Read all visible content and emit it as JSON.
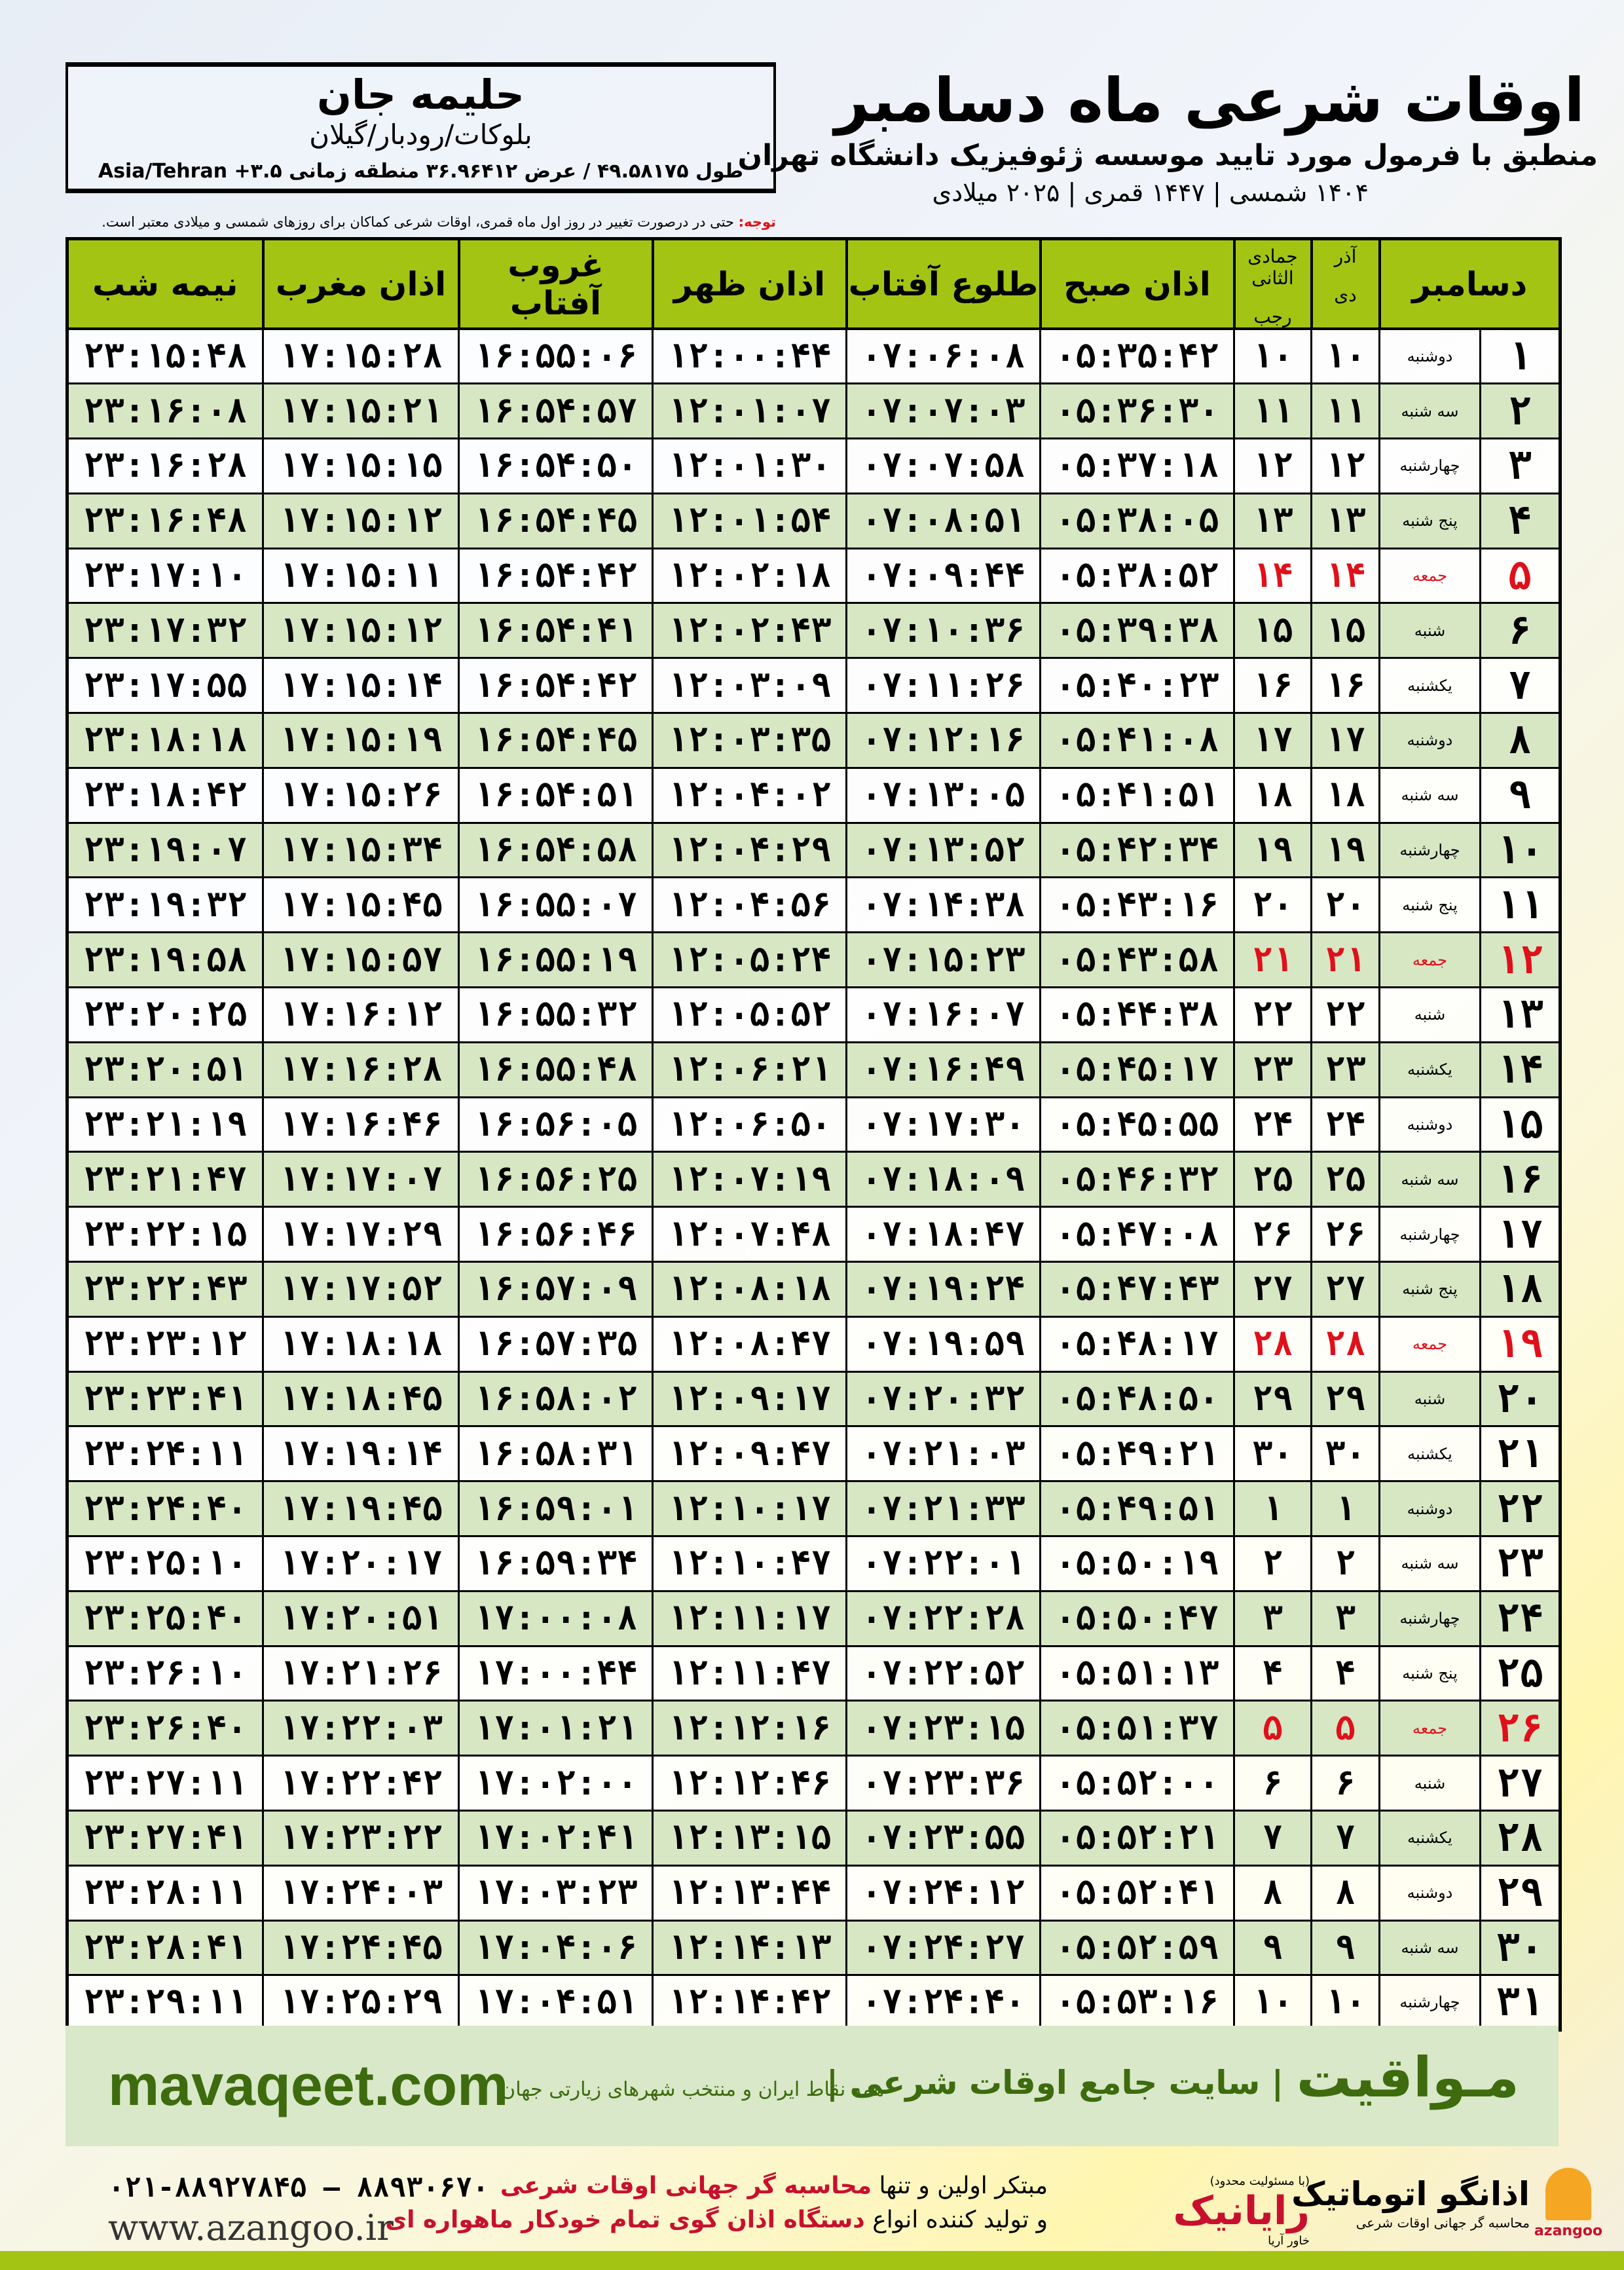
{
  "header": {
    "title": "اوقات شرعی ماه دسامبر",
    "subtitle": "منطبق با فرمول مورد تایید موسسه ژئوفیزیک دانشگاه تهران",
    "years": "۱۴۰۴ شمسی | ۱۴۴۷ قمری | ۲۰۲۵ میلادی"
  },
  "location": {
    "name": "حلیمه جان",
    "region": "بلوکات/رودبار/گیلان",
    "coords": "طول ۴۹.۵۸۱۷۵ / عرض ۳۶.۹۶۴۱۲ منطقه زمانی ۳.۵+ Asia/Tehran"
  },
  "note": {
    "label": "توجه:",
    "text": " حتی در درصورت تغییر در روز اول ماه قمری، اوقات شرعی کماکان برای روزهای شمسی و میلادی معتبر است."
  },
  "table": {
    "headers": {
      "month": "دسامبر",
      "shamsi_top": "آذر",
      "shamsi_bottom": "دی",
      "hijri_top": "جمادی الثانی",
      "hijri_bottom": "رجب",
      "fajr": "اذان صبح",
      "sunrise": "طلوع آفتاب",
      "dhuhr": "اذان ظهر",
      "sunset": "غروب آفتاب",
      "maghrib": "اذان مغرب",
      "midnight": "نیمه شب"
    },
    "friday_color": "#e0101a",
    "header_color": "#a4c414",
    "alt_row_color": "#d7e7c4",
    "rows": [
      [
        "۱",
        "دوشنبه",
        "۱۰",
        "۱۰",
        "۰۵:۳۵:۴۲",
        "۰۷:۰۶:۰۸",
        "۱۲:۰۰:۴۴",
        "۱۶:۵۵:۰۶",
        "۱۷:۱۵:۲۸",
        "۲۳:۱۵:۴۸"
      ],
      [
        "۲",
        "سه شنبه",
        "۱۱",
        "۱۱",
        "۰۵:۳۶:۳۰",
        "۰۷:۰۷:۰۳",
        "۱۲:۰۱:۰۷",
        "۱۶:۵۴:۵۷",
        "۱۷:۱۵:۲۱",
        "۲۳:۱۶:۰۸"
      ],
      [
        "۳",
        "چهارشنبه",
        "۱۲",
        "۱۲",
        "۰۵:۳۷:۱۸",
        "۰۷:۰۷:۵۸",
        "۱۲:۰۱:۳۰",
        "۱۶:۵۴:۵۰",
        "۱۷:۱۵:۱۵",
        "۲۳:۱۶:۲۸"
      ],
      [
        "۴",
        "پنج شنبه",
        "۱۳",
        "۱۳",
        "۰۵:۳۸:۰۵",
        "۰۷:۰۸:۵۱",
        "۱۲:۰۱:۵۴",
        "۱۶:۵۴:۴۵",
        "۱۷:۱۵:۱۲",
        "۲۳:۱۶:۴۸"
      ],
      [
        "۵",
        "جمعه",
        "۱۴",
        "۱۴",
        "۰۵:۳۸:۵۲",
        "۰۷:۰۹:۴۴",
        "۱۲:۰۲:۱۸",
        "۱۶:۵۴:۴۲",
        "۱۷:۱۵:۱۱",
        "۲۳:۱۷:۱۰"
      ],
      [
        "۶",
        "شنبه",
        "۱۵",
        "۱۵",
        "۰۵:۳۹:۳۸",
        "۰۷:۱۰:۳۶",
        "۱۲:۰۲:۴۳",
        "۱۶:۵۴:۴۱",
        "۱۷:۱۵:۱۲",
        "۲۳:۱۷:۳۲"
      ],
      [
        "۷",
        "یکشنبه",
        "۱۶",
        "۱۶",
        "۰۵:۴۰:۲۳",
        "۰۷:۱۱:۲۶",
        "۱۲:۰۳:۰۹",
        "۱۶:۵۴:۴۲",
        "۱۷:۱۵:۱۴",
        "۲۳:۱۷:۵۵"
      ],
      [
        "۸",
        "دوشنبه",
        "۱۷",
        "۱۷",
        "۰۵:۴۱:۰۸",
        "۰۷:۱۲:۱۶",
        "۱۲:۰۳:۳۵",
        "۱۶:۵۴:۴۵",
        "۱۷:۱۵:۱۹",
        "۲۳:۱۸:۱۸"
      ],
      [
        "۹",
        "سه شنبه",
        "۱۸",
        "۱۸",
        "۰۵:۴۱:۵۱",
        "۰۷:۱۳:۰۵",
        "۱۲:۰۴:۰۲",
        "۱۶:۵۴:۵۱",
        "۱۷:۱۵:۲۶",
        "۲۳:۱۸:۴۲"
      ],
      [
        "۱۰",
        "چهارشنبه",
        "۱۹",
        "۱۹",
        "۰۵:۴۲:۳۴",
        "۰۷:۱۳:۵۲",
        "۱۲:۰۴:۲۹",
        "۱۶:۵۴:۵۸",
        "۱۷:۱۵:۳۴",
        "۲۳:۱۹:۰۷"
      ],
      [
        "۱۱",
        "پنج شنبه",
        "۲۰",
        "۲۰",
        "۰۵:۴۳:۱۶",
        "۰۷:۱۴:۳۸",
        "۱۲:۰۴:۵۶",
        "۱۶:۵۵:۰۷",
        "۱۷:۱۵:۴۵",
        "۲۳:۱۹:۳۲"
      ],
      [
        "۱۲",
        "جمعه",
        "۲۱",
        "۲۱",
        "۰۵:۴۳:۵۸",
        "۰۷:۱۵:۲۳",
        "۱۲:۰۵:۲۴",
        "۱۶:۵۵:۱۹",
        "۱۷:۱۵:۵۷",
        "۲۳:۱۹:۵۸"
      ],
      [
        "۱۳",
        "شنبه",
        "۲۲",
        "۲۲",
        "۰۵:۴۴:۳۸",
        "۰۷:۱۶:۰۷",
        "۱۲:۰۵:۵۲",
        "۱۶:۵۵:۳۲",
        "۱۷:۱۶:۱۲",
        "۲۳:۲۰:۲۵"
      ],
      [
        "۱۴",
        "یکشنبه",
        "۲۳",
        "۲۳",
        "۰۵:۴۵:۱۷",
        "۰۷:۱۶:۴۹",
        "۱۲:۰۶:۲۱",
        "۱۶:۵۵:۴۸",
        "۱۷:۱۶:۲۸",
        "۲۳:۲۰:۵۱"
      ],
      [
        "۱۵",
        "دوشنبه",
        "۲۴",
        "۲۴",
        "۰۵:۴۵:۵۵",
        "۰۷:۱۷:۳۰",
        "۱۲:۰۶:۵۰",
        "۱۶:۵۶:۰۵",
        "۱۷:۱۶:۴۶",
        "۲۳:۲۱:۱۹"
      ],
      [
        "۱۶",
        "سه شنبه",
        "۲۵",
        "۲۵",
        "۰۵:۴۶:۳۲",
        "۰۷:۱۸:۰۹",
        "۱۲:۰۷:۱۹",
        "۱۶:۵۶:۲۵",
        "۱۷:۱۷:۰۷",
        "۲۳:۲۱:۴۷"
      ],
      [
        "۱۷",
        "چهارشنبه",
        "۲۶",
        "۲۶",
        "۰۵:۴۷:۰۸",
        "۰۷:۱۸:۴۷",
        "۱۲:۰۷:۴۸",
        "۱۶:۵۶:۴۶",
        "۱۷:۱۷:۲۹",
        "۲۳:۲۲:۱۵"
      ],
      [
        "۱۸",
        "پنج شنبه",
        "۲۷",
        "۲۷",
        "۰۵:۴۷:۴۳",
        "۰۷:۱۹:۲۴",
        "۱۲:۰۸:۱۸",
        "۱۶:۵۷:۰۹",
        "۱۷:۱۷:۵۲",
        "۲۳:۲۲:۴۳"
      ],
      [
        "۱۹",
        "جمعه",
        "۲۸",
        "۲۸",
        "۰۵:۴۸:۱۷",
        "۰۷:۱۹:۵۹",
        "۱۲:۰۸:۴۷",
        "۱۶:۵۷:۳۵",
        "۱۷:۱۸:۱۸",
        "۲۳:۲۳:۱۲"
      ],
      [
        "۲۰",
        "شنبه",
        "۲۹",
        "۲۹",
        "۰۵:۴۸:۵۰",
        "۰۷:۲۰:۳۲",
        "۱۲:۰۹:۱۷",
        "۱۶:۵۸:۰۲",
        "۱۷:۱۸:۴۵",
        "۲۳:۲۳:۴۱"
      ],
      [
        "۲۱",
        "یکشنبه",
        "۳۰",
        "۳۰",
        "۰۵:۴۹:۲۱",
        "۰۷:۲۱:۰۳",
        "۱۲:۰۹:۴۷",
        "۱۶:۵۸:۳۱",
        "۱۷:۱۹:۱۴",
        "۲۳:۲۴:۱۱"
      ],
      [
        "۲۲",
        "دوشنبه",
        "۱",
        "۱",
        "۰۵:۴۹:۵۱",
        "۰۷:۲۱:۳۳",
        "۱۲:۱۰:۱۷",
        "۱۶:۵۹:۰۱",
        "۱۷:۱۹:۴۵",
        "۲۳:۲۴:۴۰"
      ],
      [
        "۲۳",
        "سه شنبه",
        "۲",
        "۲",
        "۰۵:۵۰:۱۹",
        "۰۷:۲۲:۰۱",
        "۱۲:۱۰:۴۷",
        "۱۶:۵۹:۳۴",
        "۱۷:۲۰:۱۷",
        "۲۳:۲۵:۱۰"
      ],
      [
        "۲۴",
        "چهارشنبه",
        "۳",
        "۳",
        "۰۵:۵۰:۴۷",
        "۰۷:۲۲:۲۸",
        "۱۲:۱۱:۱۷",
        "۱۷:۰۰:۰۸",
        "۱۷:۲۰:۵۱",
        "۲۳:۲۵:۴۰"
      ],
      [
        "۲۵",
        "پنج شنبه",
        "۴",
        "۴",
        "۰۵:۵۱:۱۳",
        "۰۷:۲۲:۵۲",
        "۱۲:۱۱:۴۷",
        "۱۷:۰۰:۴۴",
        "۱۷:۲۱:۲۶",
        "۲۳:۲۶:۱۰"
      ],
      [
        "۲۶",
        "جمعه",
        "۵",
        "۵",
        "۰۵:۵۱:۳۷",
        "۰۷:۲۳:۱۵",
        "۱۲:۱۲:۱۶",
        "۱۷:۰۱:۲۱",
        "۱۷:۲۲:۰۳",
        "۲۳:۲۶:۴۰"
      ],
      [
        "۲۷",
        "شنبه",
        "۶",
        "۶",
        "۰۵:۵۲:۰۰",
        "۰۷:۲۳:۳۶",
        "۱۲:۱۲:۴۶",
        "۱۷:۰۲:۰۰",
        "۱۷:۲۲:۴۲",
        "۲۳:۲۷:۱۱"
      ],
      [
        "۲۸",
        "یکشنبه",
        "۷",
        "۷",
        "۰۵:۵۲:۲۱",
        "۰۷:۲۳:۵۵",
        "۱۲:۱۳:۱۵",
        "۱۷:۰۲:۴۱",
        "۱۷:۲۳:۲۲",
        "۲۳:۲۷:۴۱"
      ],
      [
        "۲۹",
        "دوشنبه",
        "۸",
        "۸",
        "۰۵:۵۲:۴۱",
        "۰۷:۲۴:۱۲",
        "۱۲:۱۳:۴۴",
        "۱۷:۰۳:۲۳",
        "۱۷:۲۴:۰۳",
        "۲۳:۲۸:۱۱"
      ],
      [
        "۳۰",
        "سه شنبه",
        "۹",
        "۹",
        "۰۵:۵۲:۵۹",
        "۰۷:۲۴:۲۷",
        "۱۲:۱۴:۱۳",
        "۱۷:۰۴:۰۶",
        "۱۷:۲۴:۴۵",
        "۲۳:۲۸:۴۱"
      ],
      [
        "۳۱",
        "چهارشنبه",
        "۱۰",
        "۱۰",
        "۰۵:۵۳:۱۶",
        "۰۷:۲۴:۴۰",
        "۱۲:۱۴:۴۲",
        "۱۷:۰۴:۵۱",
        "۱۷:۲۵:۲۹",
        "۲۳:۲۹:۱۱"
      ]
    ]
  },
  "banner": {
    "brand": "مـواقیت",
    "tagline": "| سایت جامع اوقات شرعی |",
    "tagline2": "همه نقاط ایران و منتخب شهرهای زیارتی جهان",
    "site": "mavaqeet.com",
    "color": "#3d6b0e"
  },
  "footer": {
    "phone": "۰۲۱-۸۸۹۲۷۸۴۵ – ۸۸۹۳۰۶۷۰",
    "web": "www.azangoo.ir",
    "promo1_a": "مبتکر اولین و تنها ",
    "promo1_b": "محاسبه گر جهانی اوقات شرعی",
    "promo2_a": "و تولید کننده انواع ",
    "promo2_b": "دستگاه اذان گوی تمام خودکار ماهواره ای",
    "logo1_small": "(با مسئولیت محدود)",
    "logo1_a": "خاور آریا",
    "logo1_b": "رایانیک",
    "logo2_name": "اذانگو اتوماتیک",
    "logo2_sub": "محاسبه گر جهانی اوقات شرعی",
    "logo2_en": "azangoo"
  }
}
